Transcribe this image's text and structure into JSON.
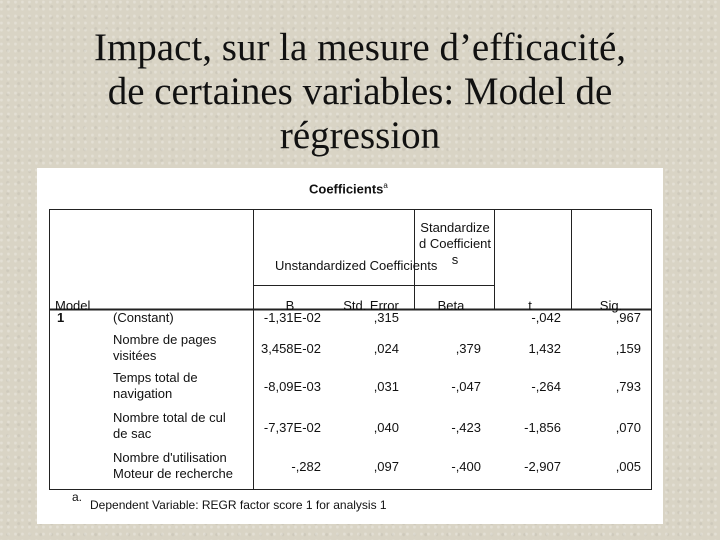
{
  "slide": {
    "title_lines": [
      "Impact, sur la mesure d’efficacité,",
      "de certaines variables: Model de",
      "régression"
    ]
  },
  "table": {
    "title": "Coefficients",
    "title_sup": "a",
    "headers": {
      "model": "Model",
      "unstandardized": "Unstandardized Coefficients",
      "standardized": "Standardized Coefficients",
      "b": "B",
      "std_error": "Std. Error",
      "beta": "Beta",
      "t": "t",
      "sig": "Sig."
    },
    "model_number": "1",
    "rows": [
      {
        "label": "(Constant)",
        "b": "-1,31E-02",
        "se": ",315",
        "beta": "",
        "t": "-,042",
        "sig": ",967"
      },
      {
        "label": "Nombre de pages visitées",
        "b": "3,458E-02",
        "se": ",024",
        "beta": ",379",
        "t": "1,432",
        "sig": ",159"
      },
      {
        "label": "Temps total de navigation",
        "b": "-8,09E-03",
        "se": ",031",
        "beta": "-,047",
        "t": "-,264",
        "sig": ",793"
      },
      {
        "label": "Nombre total de cul de sac",
        "b": "-7,37E-02",
        "se": ",040",
        "beta": "-,423",
        "t": "-1,856",
        "sig": ",070"
      },
      {
        "label": "Nombre d'utilisation Moteur de recherche",
        "b": "-,282",
        "se": ",097",
        "beta": "-,400",
        "t": "-2,907",
        "sig": ",005"
      }
    ],
    "footnote_letter": "a.",
    "footnote": "Dependent Variable: REGR factor score   1 for analysis   1"
  }
}
